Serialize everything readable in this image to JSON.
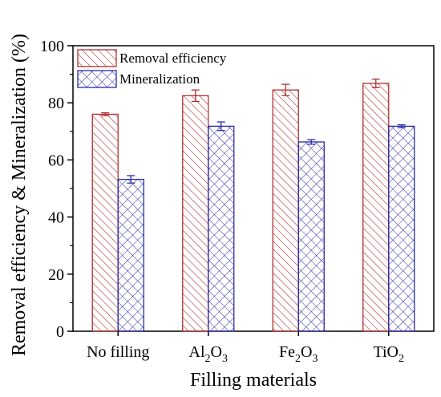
{
  "chart_data": {
    "type": "bar",
    "title": "",
    "xlabel": "Filling materials",
    "ylabel": "Removal efficiency & Mineralization (%)",
    "ylim": [
      0,
      100
    ],
    "yticks": [
      0,
      20,
      40,
      60,
      80,
      100
    ],
    "categories": [
      {
        "base": "No filling",
        "parts": [
          {
            "t": "No filling",
            "sub": false
          }
        ]
      },
      {
        "base": "Al2O3",
        "parts": [
          {
            "t": "Al",
            "sub": false
          },
          {
            "t": "2",
            "sub": true
          },
          {
            "t": "O",
            "sub": false
          },
          {
            "t": "3",
            "sub": true
          }
        ]
      },
      {
        "base": "Fe2O3",
        "parts": [
          {
            "t": "Fe",
            "sub": false
          },
          {
            "t": "2",
            "sub": true
          },
          {
            "t": "O",
            "sub": false
          },
          {
            "t": "3",
            "sub": true
          }
        ]
      },
      {
        "base": "TiO2",
        "parts": [
          {
            "t": "TiO",
            "sub": false
          },
          {
            "t": "2",
            "sub": true
          }
        ]
      }
    ],
    "series": [
      {
        "name": "Removal efficiency",
        "color": "#b03030",
        "pattern": "diagonal-hatch",
        "values": [
          76,
          82.5,
          84.5,
          86.8
        ],
        "errors": [
          0.5,
          2.0,
          2.0,
          1.5
        ]
      },
      {
        "name": "Mineralization",
        "color": "#2a2aa8",
        "pattern": "crosshatch",
        "values": [
          53.2,
          71.8,
          66.3,
          71.8
        ],
        "errors": [
          1.3,
          1.5,
          0.8,
          0.5
        ]
      }
    ],
    "legend": "top-left",
    "grid": false
  }
}
